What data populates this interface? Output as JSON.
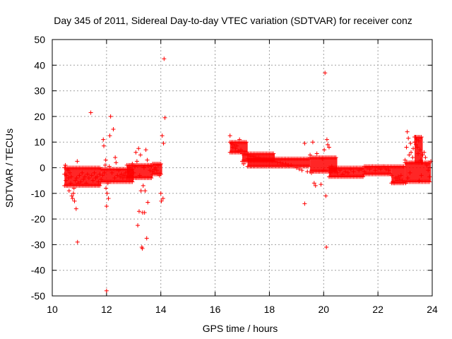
{
  "chart_data": {
    "type": "scatter",
    "title": "Day 345 of 2011, Sidereal Day-to-day VTEC variation (SDTVAR) for receiver conz",
    "xlabel": "GPS time / hours",
    "ylabel": "SDTVAR / TECUs",
    "xlim": [
      10,
      24
    ],
    "ylim": [
      -50,
      50
    ],
    "xticks": [
      10,
      12,
      14,
      16,
      18,
      20,
      22,
      24
    ],
    "yticks": [
      -50,
      -40,
      -30,
      -20,
      -10,
      0,
      10,
      20,
      30,
      40,
      50
    ],
    "grid": true,
    "marker": "+",
    "color": "#ff0000",
    "series": [
      {
        "name": "SDTVAR",
        "points": [
          [
            10.45,
            -2.5
          ],
          [
            10.48,
            1.0
          ],
          [
            10.5,
            -5.0
          ],
          [
            10.52,
            -3.0
          ],
          [
            10.55,
            -7.0
          ],
          [
            10.58,
            -1.0
          ],
          [
            10.6,
            -4.0
          ],
          [
            10.62,
            -9.0
          ],
          [
            10.65,
            -2.0
          ],
          [
            10.68,
            -6.0
          ],
          [
            10.7,
            -3.5
          ],
          [
            10.72,
            -11.0
          ],
          [
            10.75,
            -12.0
          ],
          [
            10.78,
            -10.0
          ],
          [
            10.8,
            -8.0
          ],
          [
            10.82,
            -13.0
          ],
          [
            10.85,
            -5.0
          ],
          [
            10.88,
            -16.0
          ],
          [
            10.9,
            -4.0
          ],
          [
            10.92,
            2.5
          ],
          [
            10.93,
            -29.0
          ],
          [
            10.95,
            -6.0
          ],
          [
            11.0,
            -3.0
          ],
          [
            11.05,
            -5.5
          ],
          [
            11.1,
            -2.0
          ],
          [
            11.15,
            -4.5
          ],
          [
            11.2,
            -3.5
          ],
          [
            11.25,
            -6.0
          ],
          [
            11.3,
            -2.5
          ],
          [
            11.35,
            -4.0
          ],
          [
            11.42,
            21.5
          ],
          [
            11.45,
            -3.0
          ],
          [
            11.5,
            -5.0
          ],
          [
            11.55,
            -2.0
          ],
          [
            11.6,
            -4.0
          ],
          [
            11.65,
            -3.5
          ],
          [
            11.7,
            -5.5
          ],
          [
            11.75,
            -2.5
          ],
          [
            11.8,
            -4.5
          ],
          [
            11.85,
            -3.0
          ],
          [
            11.88,
            11.0
          ],
          [
            11.9,
            8.5
          ],
          [
            11.92,
            -2.0
          ],
          [
            11.95,
            1.0
          ],
          [
            11.97,
            3.0
          ],
          [
            11.98,
            -8.0
          ],
          [
            12.0,
            -15.0
          ],
          [
            12.0,
            -48.0
          ],
          [
            12.02,
            -10.0
          ],
          [
            12.05,
            -6.0
          ],
          [
            12.07,
            -12.0
          ],
          [
            12.1,
            0.5
          ],
          [
            12.12,
            12.5
          ],
          [
            12.15,
            20.0
          ],
          [
            12.2,
            -2.0
          ],
          [
            12.25,
            15.0
          ],
          [
            12.3,
            -4.0
          ],
          [
            12.32,
            4.0
          ],
          [
            12.35,
            2.0
          ],
          [
            12.4,
            -3.0
          ],
          [
            12.45,
            -1.0
          ],
          [
            12.5,
            -3.5
          ],
          [
            12.55,
            -2.5
          ],
          [
            12.6,
            -4.0
          ],
          [
            12.65,
            -3.0
          ],
          [
            12.7,
            -2.0
          ],
          [
            12.75,
            -3.5
          ],
          [
            12.8,
            -1.5
          ],
          [
            12.85,
            0.0
          ],
          [
            12.9,
            -3.0
          ],
          [
            12.95,
            1.5
          ],
          [
            13.0,
            -2.0
          ],
          [
            13.05,
            0.5
          ],
          [
            13.08,
            6.0
          ],
          [
            13.1,
            -4.0
          ],
          [
            13.12,
            2.5
          ],
          [
            13.15,
            -22.5
          ],
          [
            13.18,
            7.5
          ],
          [
            13.2,
            -17.0
          ],
          [
            13.22,
            -3.0
          ],
          [
            13.25,
            5.0
          ],
          [
            13.27,
            -9.0
          ],
          [
            13.3,
            -31.0
          ],
          [
            13.32,
            -31.5
          ],
          [
            13.33,
            -17.5
          ],
          [
            13.35,
            -7.0
          ],
          [
            13.38,
            0.0
          ],
          [
            13.4,
            -17.5
          ],
          [
            13.42,
            -9.0
          ],
          [
            13.45,
            7.0
          ],
          [
            13.48,
            -27.5
          ],
          [
            13.5,
            3.0
          ],
          [
            13.52,
            -13.5
          ],
          [
            13.55,
            1.0
          ],
          [
            13.6,
            -1.0
          ],
          [
            13.65,
            0.5
          ],
          [
            13.7,
            -1.5
          ],
          [
            13.75,
            -0.5
          ],
          [
            13.8,
            0.0
          ],
          [
            13.85,
            -1.0
          ],
          [
            13.9,
            1.0
          ],
          [
            13.95,
            -3.0
          ],
          [
            14.0,
            -10.0
          ],
          [
            14.02,
            -13.0
          ],
          [
            14.05,
            12.5
          ],
          [
            14.08,
            -12.0
          ],
          [
            14.1,
            9.5
          ],
          [
            14.12,
            42.5
          ],
          [
            14.15,
            19.5
          ],
          [
            16.55,
            12.5
          ],
          [
            16.6,
            9.5
          ],
          [
            16.65,
            8.0
          ],
          [
            16.7,
            9.0
          ],
          [
            16.75,
            7.5
          ],
          [
            16.8,
            8.5
          ],
          [
            16.85,
            6.5
          ],
          [
            16.9,
            11.0
          ],
          [
            16.95,
            7.0
          ],
          [
            17.0,
            6.0
          ],
          [
            17.05,
            1.5
          ],
          [
            17.1,
            5.5
          ],
          [
            17.2,
            5.0
          ],
          [
            17.3,
            4.5
          ],
          [
            17.4,
            4.5
          ],
          [
            17.5,
            4.0
          ],
          [
            17.6,
            4.0
          ],
          [
            17.7,
            3.5
          ],
          [
            17.8,
            3.5
          ],
          [
            17.9,
            3.0
          ],
          [
            18.0,
            3.0
          ],
          [
            18.1,
            2.5
          ],
          [
            18.2,
            2.5
          ],
          [
            18.3,
            2.0
          ],
          [
            18.4,
            2.0
          ],
          [
            18.5,
            1.5
          ],
          [
            18.6,
            1.5
          ],
          [
            18.7,
            1.0
          ],
          [
            18.8,
            1.0
          ],
          [
            18.9,
            0.5
          ],
          [
            19.0,
            0.0
          ],
          [
            19.1,
            -0.5
          ],
          [
            19.2,
            -1.0
          ],
          [
            19.3,
            -14.0
          ],
          [
            19.3,
            9.5
          ],
          [
            19.4,
            -1.5
          ],
          [
            19.5,
            5.0
          ],
          [
            19.55,
            -2.0
          ],
          [
            19.6,
            10.0
          ],
          [
            19.65,
            -6.0
          ],
          [
            19.7,
            -7.0
          ],
          [
            19.75,
            5.5
          ],
          [
            19.8,
            -1.5
          ],
          [
            19.9,
            -6.5
          ],
          [
            19.95,
            3.5
          ],
          [
            20.0,
            -1.0
          ],
          [
            20.02,
            7.0
          ],
          [
            20.05,
            37.0
          ],
          [
            20.08,
            -11.0
          ],
          [
            20.1,
            -31.0
          ],
          [
            20.12,
            11.0
          ],
          [
            20.15,
            9.0
          ],
          [
            20.2,
            8.0
          ],
          [
            20.25,
            -2.0
          ],
          [
            20.3,
            0.5
          ],
          [
            20.4,
            -1.0
          ],
          [
            20.5,
            -2.0
          ],
          [
            20.6,
            -1.0
          ],
          [
            20.7,
            -2.5
          ],
          [
            20.8,
            -1.5
          ],
          [
            20.9,
            -2.0
          ],
          [
            21.0,
            -0.5
          ],
          [
            21.1,
            -1.5
          ],
          [
            21.2,
            0.0
          ],
          [
            21.3,
            -1.0
          ],
          [
            21.4,
            -0.5
          ],
          [
            21.5,
            -1.5
          ],
          [
            21.6,
            0.0
          ],
          [
            21.7,
            -0.5
          ],
          [
            21.8,
            0.5
          ],
          [
            21.9,
            -1.0
          ],
          [
            22.0,
            0.0
          ],
          [
            22.1,
            -0.5
          ],
          [
            22.2,
            0.5
          ],
          [
            22.3,
            -0.5
          ],
          [
            22.4,
            -1.0
          ],
          [
            22.5,
            -3.0
          ],
          [
            22.55,
            -5.5
          ],
          [
            22.6,
            -6.0
          ],
          [
            22.65,
            -4.0
          ],
          [
            22.7,
            -5.0
          ],
          [
            22.75,
            -3.5
          ],
          [
            22.8,
            -4.5
          ],
          [
            22.85,
            -3.0
          ],
          [
            22.9,
            -5.0
          ],
          [
            22.95,
            0.5
          ],
          [
            23.0,
            3.0
          ],
          [
            23.02,
            -6.0
          ],
          [
            23.05,
            8.0
          ],
          [
            23.08,
            14.0
          ],
          [
            23.1,
            -4.0
          ],
          [
            23.12,
            11.5
          ],
          [
            23.15,
            5.0
          ],
          [
            23.18,
            -2.0
          ],
          [
            23.2,
            9.5
          ],
          [
            23.22,
            6.0
          ],
          [
            23.25,
            2.0
          ],
          [
            23.28,
            4.0
          ],
          [
            23.3,
            7.5
          ],
          [
            23.35,
            10.0
          ],
          [
            23.38,
            12.0
          ],
          [
            23.4,
            9.0
          ],
          [
            23.42,
            11.0
          ],
          [
            23.45,
            8.0
          ],
          [
            23.48,
            5.5
          ],
          [
            23.5,
            10.5
          ],
          [
            23.52,
            -5.0
          ],
          [
            23.55,
            7.0
          ],
          [
            23.58,
            3.0
          ],
          [
            23.6,
            -3.0
          ],
          [
            23.62,
            2.0
          ],
          [
            23.65,
            5.0
          ],
          [
            23.7,
            6.0
          ],
          [
            23.75,
            4.0
          ],
          [
            23.8,
            1.0
          ],
          [
            23.85,
            -1.0
          ],
          [
            23.9,
            -3.5
          ],
          [
            23.95,
            2.5
          ]
        ],
        "bands": [
          {
            "x_start": 10.45,
            "x_end": 11.8,
            "y_min": -7.0,
            "y_max": 0.0
          },
          {
            "x_start": 11.8,
            "x_end": 13.0,
            "y_min": -5.5,
            "y_max": -0.5
          },
          {
            "x_start": 12.75,
            "x_end": 13.7,
            "y_min": -4.0,
            "y_max": 1.0
          },
          {
            "x_start": 13.7,
            "x_end": 14.05,
            "y_min": -2.5,
            "y_max": 1.5
          },
          {
            "x_start": 16.55,
            "x_end": 17.2,
            "y_min": 6.0,
            "y_max": 10.0
          },
          {
            "x_start": 17.0,
            "x_end": 18.2,
            "y_min": 2.5,
            "y_max": 5.5
          },
          {
            "x_start": 17.2,
            "x_end": 19.5,
            "y_min": 0.5,
            "y_max": 3.5
          },
          {
            "x_start": 19.5,
            "x_end": 20.5,
            "y_min": -1.5,
            "y_max": 4.0
          },
          {
            "x_start": 20.2,
            "x_end": 21.5,
            "y_min": -3.5,
            "y_max": 0.0
          },
          {
            "x_start": 21.5,
            "x_end": 22.5,
            "y_min": -2.5,
            "y_max": 0.5
          },
          {
            "x_start": 22.5,
            "x_end": 23.0,
            "y_min": -6.0,
            "y_max": 0.5
          },
          {
            "x_start": 23.0,
            "x_end": 23.95,
            "y_min": -5.5,
            "y_max": 2.0
          },
          {
            "x_start": 23.35,
            "x_end": 23.65,
            "y_min": 2.0,
            "y_max": 12.0
          }
        ]
      }
    ]
  }
}
